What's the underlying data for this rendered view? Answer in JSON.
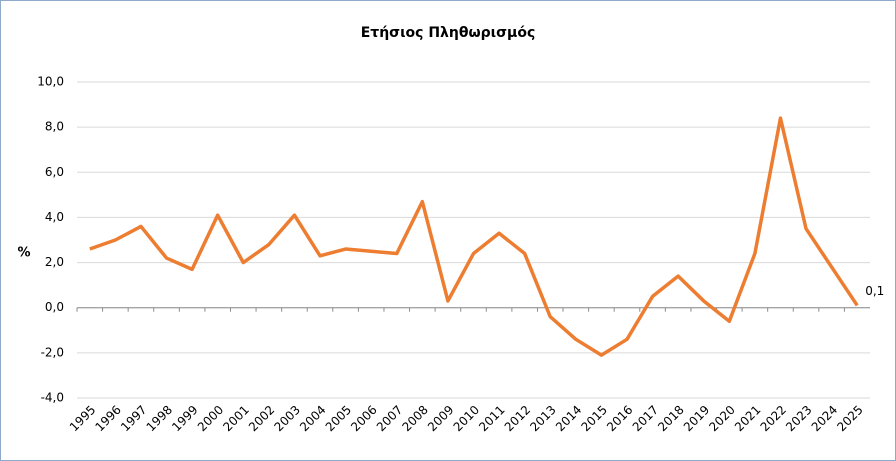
{
  "chart_data": {
    "type": "line",
    "title": "Ετήσιος Πληθωρισμός",
    "y_label": "%",
    "categories": [
      "1995",
      "1996",
      "1997",
      "1998",
      "1999",
      "2000",
      "2001",
      "2002",
      "2003",
      "2004",
      "2005",
      "2006",
      "2007",
      "2008",
      "2009",
      "2010",
      "2011",
      "2012",
      "2013",
      "2014",
      "2015",
      "2016",
      "2017",
      "2018",
      "2019",
      "2020",
      "2021",
      "2022",
      "2023",
      "2024",
      "2025"
    ],
    "series": [
      {
        "name": "Ετήσιος Πληθωρισμός",
        "color": "#ed7d31",
        "values": [
          2.6,
          3.0,
          3.6,
          2.2,
          1.7,
          4.1,
          2.0,
          2.8,
          4.1,
          2.3,
          2.6,
          2.5,
          2.4,
          4.7,
          0.3,
          2.4,
          3.3,
          2.4,
          -0.4,
          -1.4,
          -2.1,
          -1.4,
          0.5,
          1.4,
          0.3,
          -0.6,
          2.4,
          8.4,
          3.5,
          1.8,
          0.1
        ],
        "value_labels": [
          null,
          null,
          null,
          null,
          null,
          null,
          null,
          null,
          null,
          null,
          null,
          null,
          null,
          null,
          null,
          null,
          null,
          null,
          null,
          null,
          null,
          null,
          null,
          null,
          null,
          null,
          null,
          null,
          null,
          null,
          "0,1"
        ]
      }
    ],
    "ylim": [
      -4,
      10
    ],
    "yticks": [
      {
        "value": -4,
        "label": "-4,0"
      },
      {
        "value": -2,
        "label": "-2,0"
      },
      {
        "value": 0,
        "label": "0,0"
      },
      {
        "value": 2,
        "label": "2,0"
      },
      {
        "value": 4,
        "label": "4,0"
      },
      {
        "value": 6,
        "label": "6,0"
      },
      {
        "value": 8,
        "label": "8,0"
      },
      {
        "value": 10,
        "label": "10,0"
      }
    ],
    "grid": true
  }
}
